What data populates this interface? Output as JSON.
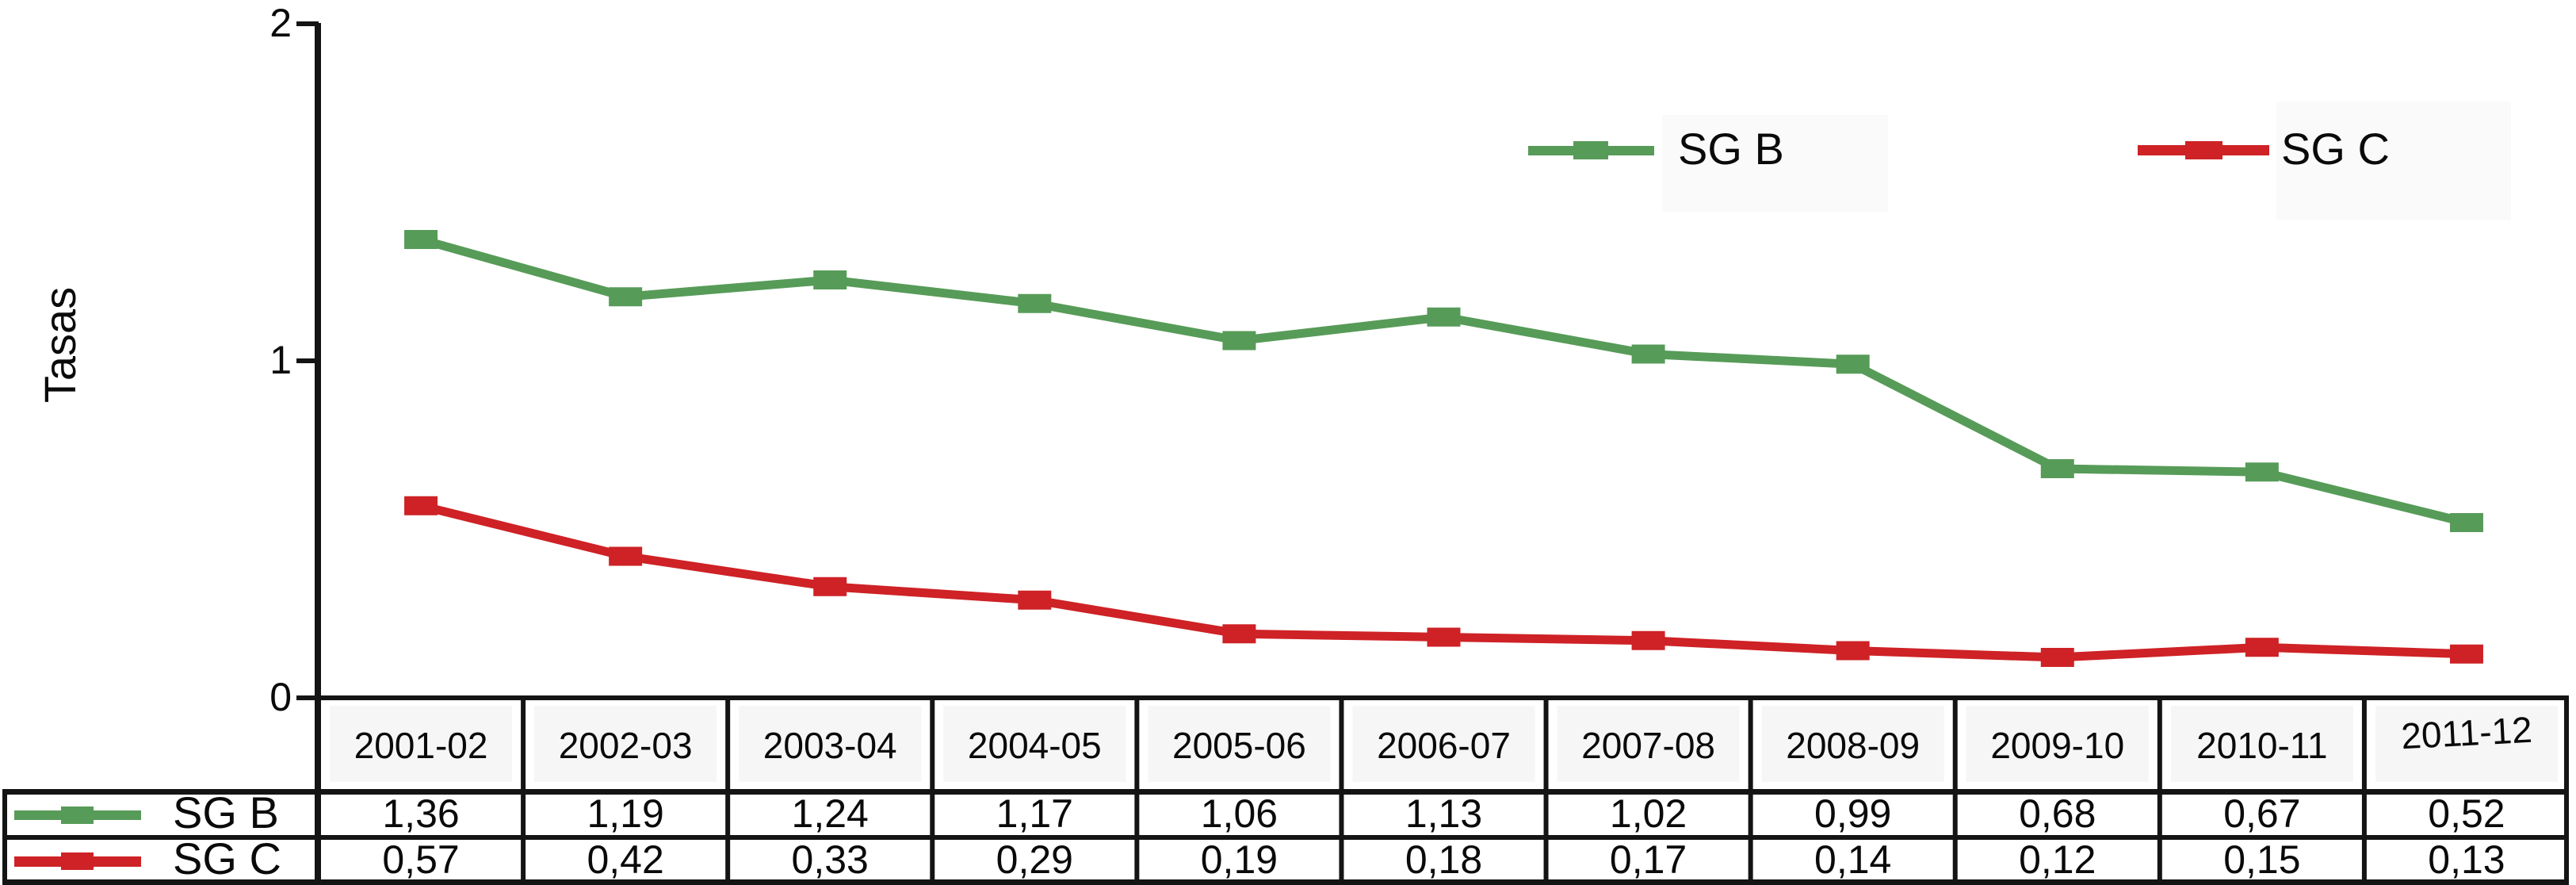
{
  "chart_data": {
    "type": "line",
    "title": "",
    "xlabel": "",
    "ylabel": "Tasas",
    "categories": [
      "2001-02",
      "2002-03",
      "2003-04",
      "2004-05",
      "2005-06",
      "2006-07",
      "2007-08",
      "2008-09",
      "2009-10",
      "2010-11",
      "2011-12"
    ],
    "series": [
      {
        "name": "SG B",
        "color": "#579b58",
        "marker": "square",
        "values": [
          1.36,
          1.19,
          1.24,
          1.17,
          1.06,
          1.13,
          1.02,
          0.99,
          0.68,
          0.67,
          0.52
        ]
      },
      {
        "name": "SG C",
        "color": "#ce2226",
        "marker": "square",
        "values": [
          0.57,
          0.42,
          0.33,
          0.29,
          0.19,
          0.18,
          0.17,
          0.14,
          0.12,
          0.15,
          0.13
        ]
      }
    ],
    "ylim": [
      0,
      2
    ],
    "yticks": [
      {
        "value": 2,
        "label": "2"
      },
      {
        "value": 1,
        "label": "1"
      },
      {
        "value": 0,
        "label": "0"
      }
    ],
    "grid": false,
    "legend_position": "top-right-inside"
  },
  "table": {
    "rows": [
      {
        "label": "SG B",
        "color": "#579b58",
        "values": [
          "1,36",
          "1,19",
          "1,24",
          "1,17",
          "1,06",
          "1,13",
          "1,02",
          "0,99",
          "0,68",
          "0,67",
          "0,52"
        ]
      },
      {
        "label": "SG C",
        "color": "#ce2226",
        "values": [
          "0,57",
          "0,42",
          "0,33",
          "0,29",
          "0,19",
          "0,18",
          "0,17",
          "0,14",
          "0,12",
          "0,15",
          "0,13"
        ]
      }
    ]
  },
  "colors": {
    "axis": "#141414",
    "header_tint": "#f6f6f6",
    "legend_tint": "#fafafa"
  }
}
